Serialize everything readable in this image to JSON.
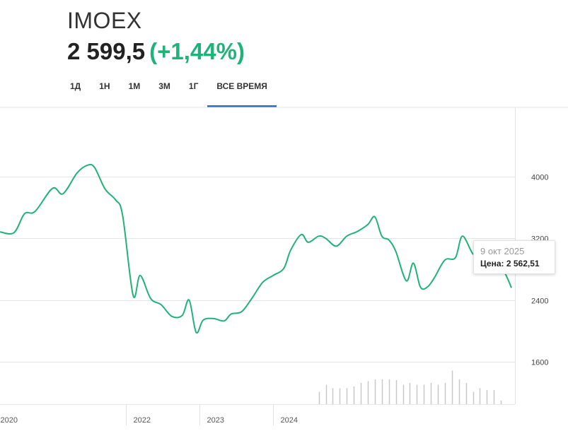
{
  "header": {
    "ticker": "IMOEX",
    "price": "2 599,5",
    "change": "(+1,44%)",
    "change_color": "#21b27a"
  },
  "tabs": [
    {
      "label": "1Д",
      "active": false
    },
    {
      "label": "1Н",
      "active": false
    },
    {
      "label": "1М",
      "active": false
    },
    {
      "label": "3М",
      "active": false
    },
    {
      "label": "1Г",
      "active": false
    },
    {
      "label": "ВСЕ ВРЕМЯ",
      "active": true
    }
  ],
  "tooltip": {
    "date": "9 окт 2025",
    "label": "Цена: 2 562,51"
  },
  "chart_data": {
    "type": "line",
    "line_color": "#21b27a",
    "accent_color": "#2f6db5",
    "y_ticks": [
      "4000",
      "3200",
      "2400",
      "1600"
    ],
    "ylim": [
      1050,
      4900
    ],
    "x_ticks": [
      "2020",
      "2022",
      "2023",
      "2024"
    ],
    "grid": true,
    "series": [
      {
        "values": [
          {
            "x": 2020.0,
            "y": 3285
          },
          {
            "x": 2020.2,
            "y": 3275
          },
          {
            "x": 2020.35,
            "y": 3520
          },
          {
            "x": 2020.5,
            "y": 3550
          },
          {
            "x": 2020.75,
            "y": 3850
          },
          {
            "x": 2020.9,
            "y": 3780
          },
          {
            "x": 2021.1,
            "y": 4050
          },
          {
            "x": 2021.25,
            "y": 4150
          },
          {
            "x": 2021.35,
            "y": 4120
          },
          {
            "x": 2021.5,
            "y": 3840
          },
          {
            "x": 2021.65,
            "y": 3700
          },
          {
            "x": 2021.75,
            "y": 3500
          },
          {
            "x": 2021.9,
            "y": 2460
          },
          {
            "x": 2022.0,
            "y": 2720
          },
          {
            "x": 2022.15,
            "y": 2420
          },
          {
            "x": 2022.3,
            "y": 2340
          },
          {
            "x": 2022.45,
            "y": 2190
          },
          {
            "x": 2022.6,
            "y": 2200
          },
          {
            "x": 2022.7,
            "y": 2400
          },
          {
            "x": 2022.8,
            "y": 1980
          },
          {
            "x": 2022.9,
            "y": 2140
          },
          {
            "x": 2023.05,
            "y": 2160
          },
          {
            "x": 2023.2,
            "y": 2130
          },
          {
            "x": 2023.3,
            "y": 2220
          },
          {
            "x": 2023.45,
            "y": 2250
          },
          {
            "x": 2023.6,
            "y": 2430
          },
          {
            "x": 2023.75,
            "y": 2630
          },
          {
            "x": 2023.9,
            "y": 2720
          },
          {
            "x": 2024.05,
            "y": 2810
          },
          {
            "x": 2024.15,
            "y": 3050
          },
          {
            "x": 2024.3,
            "y": 3250
          },
          {
            "x": 2024.4,
            "y": 3150
          },
          {
            "x": 2024.55,
            "y": 3230
          },
          {
            "x": 2024.65,
            "y": 3200
          },
          {
            "x": 2024.8,
            "y": 3100
          },
          {
            "x": 2024.95,
            "y": 3230
          },
          {
            "x": 2025.1,
            "y": 3290
          },
          {
            "x": 2025.25,
            "y": 3380
          },
          {
            "x": 2025.35,
            "y": 3480
          },
          {
            "x": 2025.45,
            "y": 3230
          },
          {
            "x": 2025.55,
            "y": 3180
          },
          {
            "x": 2025.65,
            "y": 3030
          },
          {
            "x": 2025.8,
            "y": 2650
          },
          {
            "x": 2025.9,
            "y": 2880
          },
          {
            "x": 2026.0,
            "y": 2570
          },
          {
            "x": 2026.1,
            "y": 2570
          },
          {
            "x": 2026.2,
            "y": 2690
          },
          {
            "x": 2026.35,
            "y": 2920
          },
          {
            "x": 2026.5,
            "y": 2950
          },
          {
            "x": 2026.6,
            "y": 3230
          },
          {
            "x": 2026.75,
            "y": 3000
          },
          {
            "x": 2026.9,
            "y": 2900
          },
          {
            "x": 2027.0,
            "y": 2840
          },
          {
            "x": 2027.1,
            "y": 2820
          },
          {
            "x": 2027.2,
            "y": 2760
          },
          {
            "x": 2027.3,
            "y": 2560
          }
        ]
      }
    ],
    "volume": [
      {
        "x": 2024.55,
        "v": 0.35
      },
      {
        "x": 2024.65,
        "v": 0.55
      },
      {
        "x": 2024.75,
        "v": 0.45
      },
      {
        "x": 2024.85,
        "v": 0.45
      },
      {
        "x": 2024.95,
        "v": 0.45
      },
      {
        "x": 2025.05,
        "v": 0.5
      },
      {
        "x": 2025.15,
        "v": 0.6
      },
      {
        "x": 2025.25,
        "v": 0.65
      },
      {
        "x": 2025.35,
        "v": 0.7
      },
      {
        "x": 2025.45,
        "v": 0.7
      },
      {
        "x": 2025.55,
        "v": 0.7
      },
      {
        "x": 2025.65,
        "v": 0.68
      },
      {
        "x": 2025.75,
        "v": 0.55
      },
      {
        "x": 2025.85,
        "v": 0.6
      },
      {
        "x": 2025.95,
        "v": 0.55
      },
      {
        "x": 2026.05,
        "v": 0.55
      },
      {
        "x": 2026.15,
        "v": 0.6
      },
      {
        "x": 2026.25,
        "v": 0.55
      },
      {
        "x": 2026.35,
        "v": 0.6
      },
      {
        "x": 2026.45,
        "v": 0.95
      },
      {
        "x": 2026.55,
        "v": 0.7
      },
      {
        "x": 2026.65,
        "v": 0.6
      },
      {
        "x": 2026.75,
        "v": 0.35
      },
      {
        "x": 2026.85,
        "v": 0.45
      },
      {
        "x": 2026.95,
        "v": 0.4
      },
      {
        "x": 2027.05,
        "v": 0.4
      },
      {
        "x": 2027.15,
        "v": 0.1
      }
    ]
  }
}
